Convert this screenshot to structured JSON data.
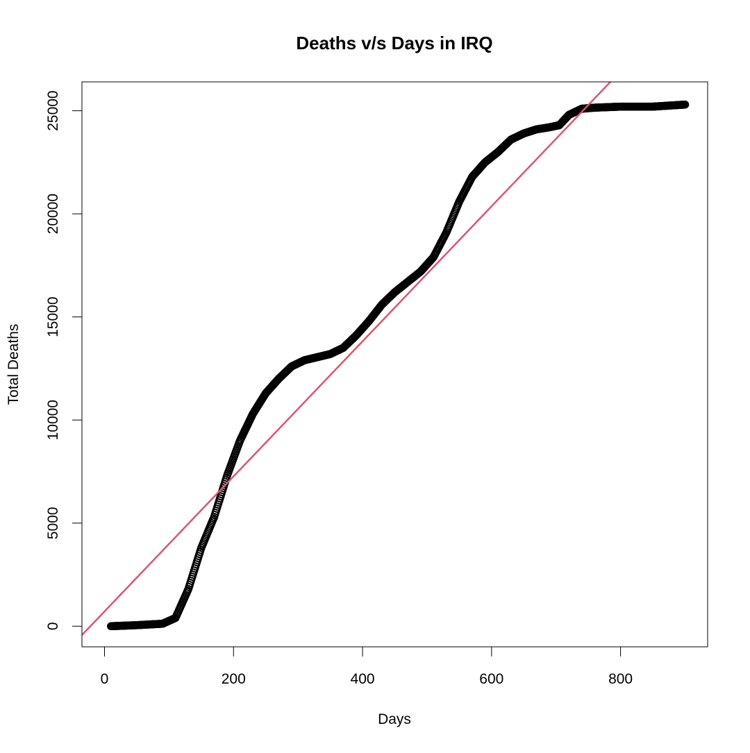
{
  "chart_data": {
    "type": "scatter",
    "title": "Deaths v/s Days in IRQ",
    "xlabel": "Days",
    "ylabel": "Total Deaths",
    "xlim": [
      -35,
      935
    ],
    "ylim": [
      -1000,
      26400
    ],
    "x_ticks": [
      0,
      200,
      400,
      600,
      800
    ],
    "y_ticks": [
      0,
      5000,
      10000,
      15000,
      20000,
      25000
    ],
    "x_tick_labels": [
      "0",
      "200",
      "400",
      "600",
      "800"
    ],
    "y_tick_labels": [
      "0",
      "5000",
      "10000",
      "15000",
      "20000",
      "25000"
    ],
    "grid": false,
    "legend": "none",
    "series": [
      {
        "kind": "points",
        "marker": "open-circle",
        "color": "#000000",
        "x_start": 10,
        "x_end": 900,
        "curve_x": [
          10,
          50,
          90,
          110,
          130,
          150,
          170,
          190,
          210,
          230,
          250,
          270,
          290,
          310,
          330,
          350,
          370,
          390,
          410,
          430,
          450,
          470,
          490,
          510,
          530,
          550,
          570,
          590,
          610,
          630,
          650,
          670,
          690,
          705,
          720,
          740,
          760,
          800,
          850,
          900
        ],
        "curve_y": [
          0,
          50,
          120,
          400,
          1800,
          3800,
          5300,
          7300,
          9000,
          10300,
          11300,
          12000,
          12600,
          12900,
          13050,
          13200,
          13500,
          14100,
          14800,
          15600,
          16200,
          16700,
          17200,
          17900,
          19100,
          20600,
          21800,
          22500,
          23000,
          23600,
          23900,
          24100,
          24200,
          24300,
          24800,
          25100,
          25150,
          25200,
          25200,
          25300
        ]
      },
      {
        "kind": "line",
        "color": "#df536b",
        "intercept": 716,
        "slope": 32.75
      }
    ]
  }
}
